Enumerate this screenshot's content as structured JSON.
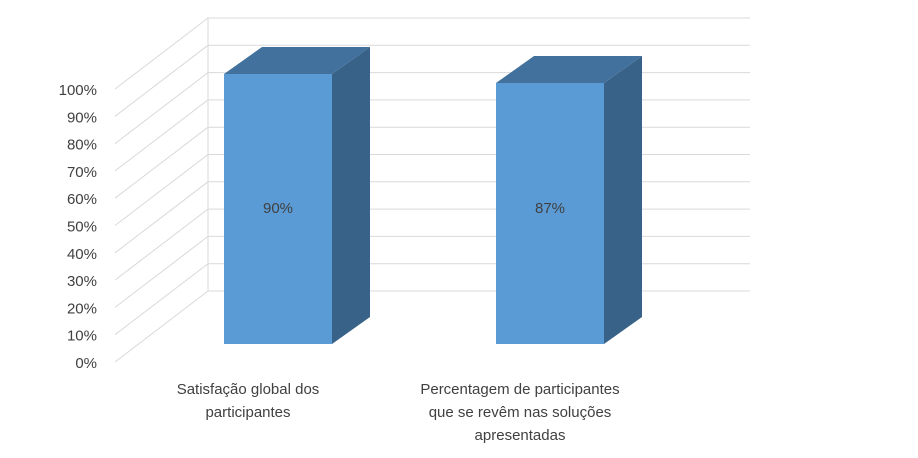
{
  "chart_data": {
    "type": "bar3d",
    "categories": [
      "Satisfação global dos\nparticipantes",
      "Percentagem de participantes\nque se revêm nas soluções\napresentadas"
    ],
    "values": [
      90,
      87
    ],
    "value_labels": [
      "90%",
      "87%"
    ],
    "color": "#5b9bd5",
    "ylim": [
      0,
      100
    ],
    "yticks": [
      {
        "value": 0,
        "label": "0%"
      },
      {
        "value": 10,
        "label": "10%"
      },
      {
        "value": 20,
        "label": "20%"
      },
      {
        "value": 30,
        "label": "30%"
      },
      {
        "value": 40,
        "label": "40%"
      },
      {
        "value": 50,
        "label": "50%"
      },
      {
        "value": 60,
        "label": "60%"
      },
      {
        "value": 70,
        "label": "70%"
      },
      {
        "value": 80,
        "label": "80%"
      },
      {
        "value": 90,
        "label": "90%"
      },
      {
        "value": 100,
        "label": "100%"
      }
    ],
    "grid": true
  }
}
